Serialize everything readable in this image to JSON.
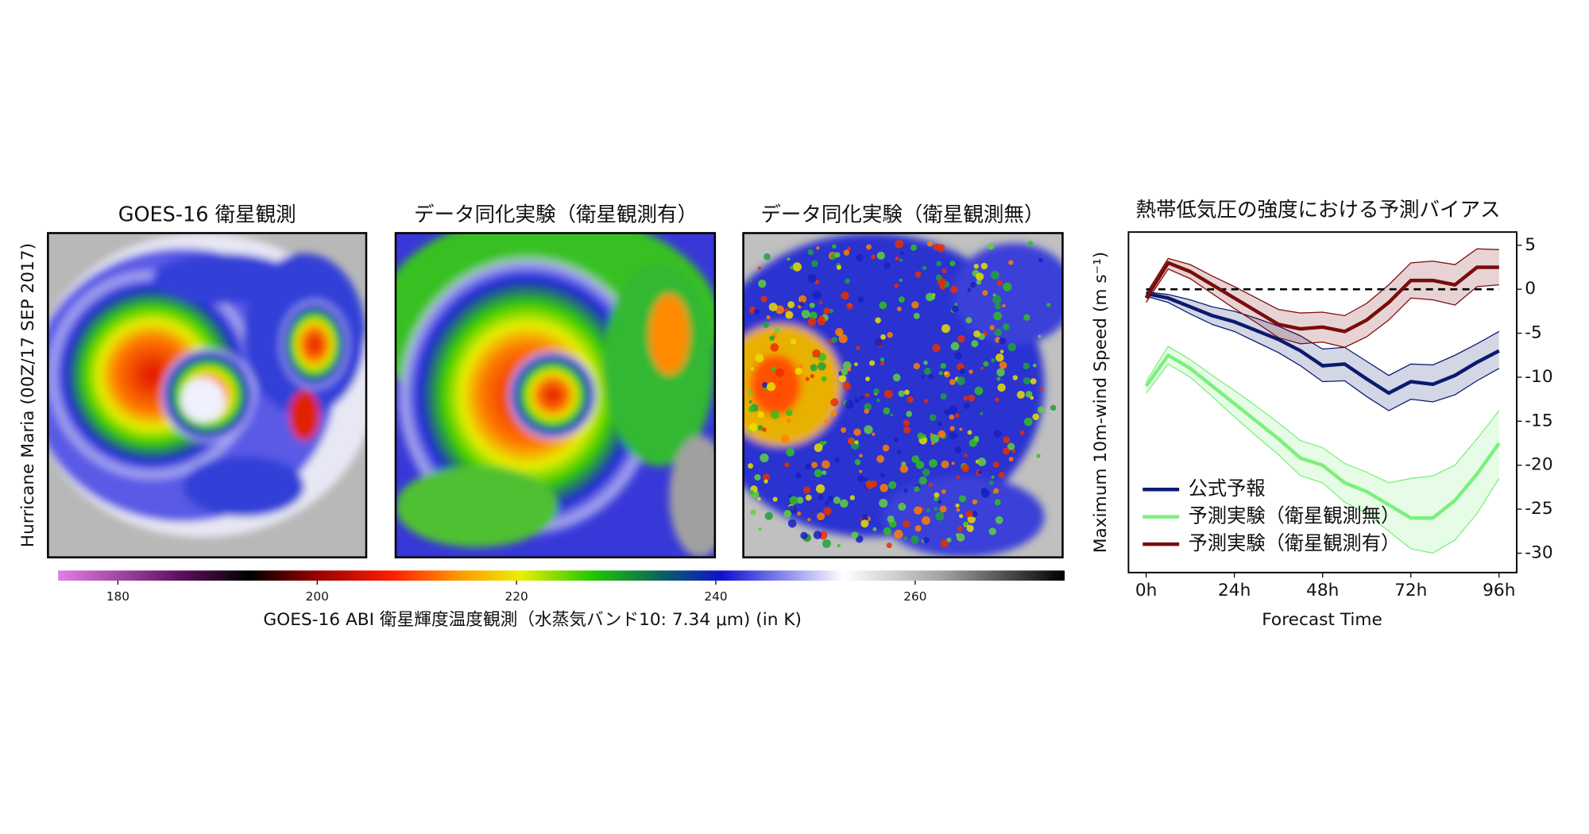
{
  "panels": [
    {
      "title": "GOES-16 衛星観測"
    },
    {
      "title": "データ同化実験（衛星観測有）"
    },
    {
      "title": "データ同化実験（衛星観測無）"
    }
  ],
  "panel_ylabel": "Hurricane Maria (00Z/17 SEP 2017)",
  "colorbar": {
    "label": "GOES-16 ABI 衛星輝度温度観測（水蒸気バンド10: 7.34 μm) (in K)",
    "lim": [
      174,
      275
    ],
    "ticks": [
      180,
      200,
      220,
      240,
      260
    ]
  },
  "chart_data": {
    "type": "line",
    "title": "熱帯低気圧の強度における予測バイアス",
    "xlabel": "Forecast Time",
    "ylabel": "Maximum 10m-wind Speed (m s⁻¹)",
    "x": [
      0,
      6,
      12,
      18,
      24,
      30,
      36,
      42,
      48,
      54,
      60,
      66,
      72,
      78,
      84,
      90,
      96
    ],
    "xlim": [
      -4.8,
      100.8
    ],
    "xticks": [
      {
        "value": 0,
        "label": "0h"
      },
      {
        "value": 24,
        "label": "24h"
      },
      {
        "value": 48,
        "label": "48h"
      },
      {
        "value": 72,
        "label": "72h"
      },
      {
        "value": 96,
        "label": "96h"
      }
    ],
    "ylim": [
      -32.2,
      6.5
    ],
    "yticks": [
      5,
      0,
      -5,
      -10,
      -15,
      -20,
      -25,
      -30
    ],
    "reference_line": 0,
    "legend": "lower left",
    "series": [
      {
        "name": "公式予報",
        "color": "#0b1a6e",
        "values": [
          -0.5,
          -1,
          -2,
          -3,
          -3.7,
          -4.7,
          -5.7,
          -7,
          -8.7,
          -8.5,
          -10.2,
          -11.8,
          -10.5,
          -10.8,
          -9.8,
          -8.3,
          -7
        ],
        "upper": [
          -0.3,
          -0.6,
          -1.2,
          -2,
          -2.5,
          -3.3,
          -4.2,
          -5.3,
          -6.8,
          -6.6,
          -8.2,
          -9.8,
          -8.5,
          -8.6,
          -7.5,
          -6.2,
          -4.8
        ],
        "lower": [
          -0.8,
          -1.5,
          -2.8,
          -4,
          -4.8,
          -6,
          -7.2,
          -8.7,
          -10.5,
          -10.4,
          -12.2,
          -13.8,
          -12.5,
          -12.8,
          -12,
          -10.4,
          -9
        ]
      },
      {
        "name": "予測実験（衛星観測無）",
        "color": "#7cf07c",
        "values": [
          -11,
          -7.5,
          -9,
          -11,
          -13,
          -15,
          -17,
          -19.2,
          -20,
          -22,
          -23,
          -24.5,
          -26,
          -26,
          -24,
          -21,
          -17.5
        ],
        "upper": [
          -10.5,
          -6.5,
          -8,
          -9.8,
          -11.5,
          -13.3,
          -15.2,
          -17.2,
          -18,
          -19.8,
          -20.8,
          -22,
          -21.5,
          -21.2,
          -20,
          -17,
          -13.8
        ],
        "lower": [
          -11.8,
          -8.5,
          -10,
          -12.2,
          -14.5,
          -16.7,
          -18.8,
          -21.2,
          -22,
          -24.2,
          -25.5,
          -27.5,
          -29.5,
          -30,
          -28.5,
          -25.5,
          -21.5
        ]
      },
      {
        "name": "予測実験（衛星観測有）",
        "color": "#7a0c0c",
        "values": [
          -1,
          3,
          2,
          0.5,
          -1,
          -2.5,
          -4,
          -4.5,
          -4.3,
          -4.8,
          -3.5,
          -1.5,
          1,
          1,
          0.5,
          2.5,
          2.5
        ],
        "upper": [
          -0.5,
          3.5,
          2.8,
          1.5,
          0.3,
          -1,
          -2.3,
          -2.7,
          -2.6,
          -3,
          -1.6,
          0.5,
          3,
          3.2,
          2.8,
          4.6,
          4.5
        ],
        "lower": [
          -1.5,
          2.3,
          1.2,
          -0.5,
          -2.2,
          -3.8,
          -5.5,
          -6.2,
          -6,
          -6.6,
          -5.4,
          -3.5,
          -1,
          -1.2,
          -1.8,
          0.3,
          0.5
        ]
      }
    ]
  }
}
